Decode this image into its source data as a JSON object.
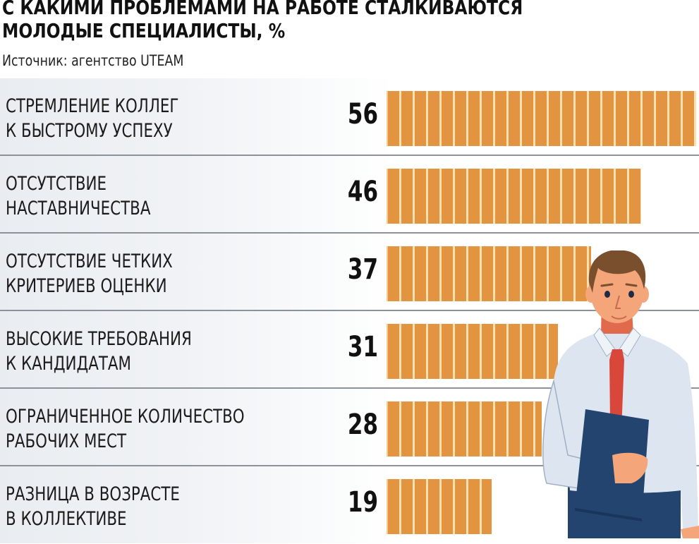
{
  "header": {
    "title_line1": "С КАКИМИ ПРОБЛЕМАМИ НА РАБОТЕ СТАЛКИВАЮТСЯ",
    "title_line2": "МОЛОДЫЕ СПЕЦИАЛИСТЫ, %",
    "source": "Источник: агентство UTEAM"
  },
  "rows": [
    {
      "line1": "СТРЕМЛЕНИЕ КОЛЛЕГ",
      "line2": "К БЫСТРОМУ УСПЕХУ",
      "value": "56"
    },
    {
      "line1": "ОТСУТСТВИЕ",
      "line2": "НАСТАВНИЧЕСТВА",
      "value": "46"
    },
    {
      "line1": "ОТСУТСТВИЕ ЧЕТКИХ",
      "line2": "КРИТЕРИЕВ ОЦЕНКИ",
      "value": "37"
    },
    {
      "line1": "ВЫСОКИЕ ТРЕБОВАНИЯ",
      "line2": "К КАНДИДАТАМ",
      "value": "31"
    },
    {
      "line1": "ОГРАНИЧЕННОЕ КОЛИЧЕСТВО",
      "line2": "РАБОЧИХ МЕСТ",
      "value": "28"
    },
    {
      "line1": "РАЗНИЦА В ВОЗРАСТЕ",
      "line2": "В КОЛЛЕКТИВЕ",
      "value": "19"
    }
  ],
  "colors": {
    "bar": "#e39440",
    "bar_gap": "#fbe0b2",
    "separator": "#8b929b",
    "label_bg": "#e9edf1",
    "shirt": "#dde6f0",
    "tie": "#d9473a",
    "folder": "#23446e",
    "trousers": "#23446e",
    "skin": "#f4a67a",
    "hair": "#7a4f2e"
  },
  "chart_data": {
    "type": "bar",
    "orientation": "horizontal",
    "title": "С КАКИМИ ПРОБЛЕМАМИ НА РАБОТЕ СТАЛКИВАЮТСЯ МОЛОДЫЕ СПЕЦИАЛИСТЫ, %",
    "subtitle": "Источник: агентство UTEAM",
    "categories": [
      "Стремление коллег к быстрому успеху",
      "Отсутствие наставничества",
      "Отсутствие четких критериев оценки",
      "Высокие требования к кандидатам",
      "Ограниченное количество рабочих мест",
      "Разница в возрасте в коллективе"
    ],
    "values": [
      56,
      46,
      37,
      31,
      28,
      19
    ],
    "xlabel": "",
    "ylabel": "",
    "unit": "%",
    "xlim": [
      0,
      56
    ],
    "grid": false,
    "legend": null,
    "data_labels": true
  }
}
